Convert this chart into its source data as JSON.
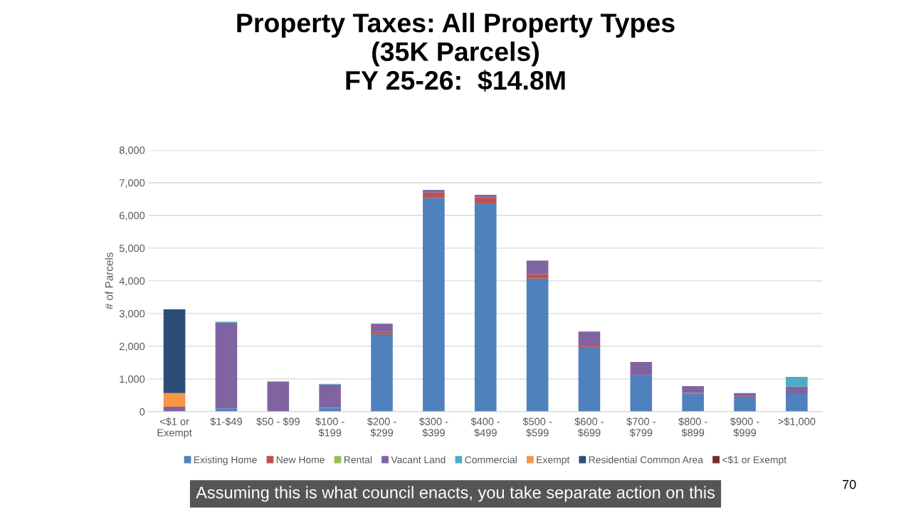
{
  "chart_data": {
    "type": "bar",
    "title": "Property Taxes: All Property Types\n(35K Parcels)\nFY 25-26:  $14.8M",
    "ylabel": "# of Parcels",
    "categories": [
      "<$1 or Exempt",
      "$1-$49",
      "$50 - $99",
      "$100 - $199",
      "$200 - $299",
      "$300 - $399",
      "$400 - $499",
      "$500 - $599",
      "$600 - $699",
      "$700 - $799",
      "$800 - $899",
      "$900 - $999",
      ">$1,000"
    ],
    "stacked": true,
    "series": [
      {
        "name": "Existing Home",
        "color": "#4f81bd",
        "values": [
          0,
          100,
          0,
          120,
          2370,
          6530,
          6370,
          4070,
          1980,
          1110,
          545,
          430,
          540
        ]
      },
      {
        "name": "New Home",
        "color": "#c0504d",
        "values": [
          0,
          0,
          0,
          0,
          80,
          170,
          180,
          130,
          60,
          0,
          30,
          30,
          0
        ]
      },
      {
        "name": "Rental",
        "color": "#9bbb59",
        "values": [
          0,
          0,
          0,
          0,
          0,
          0,
          0,
          0,
          0,
          0,
          0,
          0,
          0
        ]
      },
      {
        "name": "Vacant Land",
        "color": "#8064a2",
        "values": [
          150,
          2620,
          920,
          710,
          240,
          80,
          80,
          420,
          410,
          410,
          205,
          110,
          230
        ]
      },
      {
        "name": "Commercial",
        "color": "#4bacc6",
        "values": [
          0,
          30,
          0,
          20,
          0,
          0,
          0,
          0,
          0,
          0,
          0,
          0,
          295
        ]
      },
      {
        "name": "Exempt",
        "color": "#f79646",
        "values": [
          420,
          0,
          0,
          0,
          0,
          0,
          0,
          0,
          0,
          0,
          0,
          0,
          0
        ]
      },
      {
        "name": "Residential Common Area",
        "color": "#2c4d75",
        "values": [
          2560,
          0,
          0,
          0,
          0,
          0,
          0,
          0,
          0,
          0,
          0,
          0,
          0
        ]
      },
      {
        "name": "<$1 or Exempt",
        "color": "#772c2a",
        "values": [
          0,
          0,
          0,
          0,
          0,
          0,
          0,
          0,
          0,
          0,
          0,
          0,
          0
        ]
      }
    ],
    "ylim": [
      0,
      8000
    ],
    "yticks": [
      {
        "value": 0,
        "label": "0"
      },
      {
        "value": 1000,
        "label": "1,000"
      },
      {
        "value": 2000,
        "label": "2,000"
      },
      {
        "value": 3000,
        "label": "3,000"
      },
      {
        "value": 4000,
        "label": "4,000"
      },
      {
        "value": 5000,
        "label": "5,000"
      },
      {
        "value": 6000,
        "label": "6,000"
      },
      {
        "value": 7000,
        "label": "7,000"
      },
      {
        "value": 8000,
        "label": "8,000"
      }
    ],
    "grid": "y",
    "legend": "bottom",
    "annotations": [
      "Assuming this is what council enacts, you take separate action on this",
      "70"
    ]
  }
}
